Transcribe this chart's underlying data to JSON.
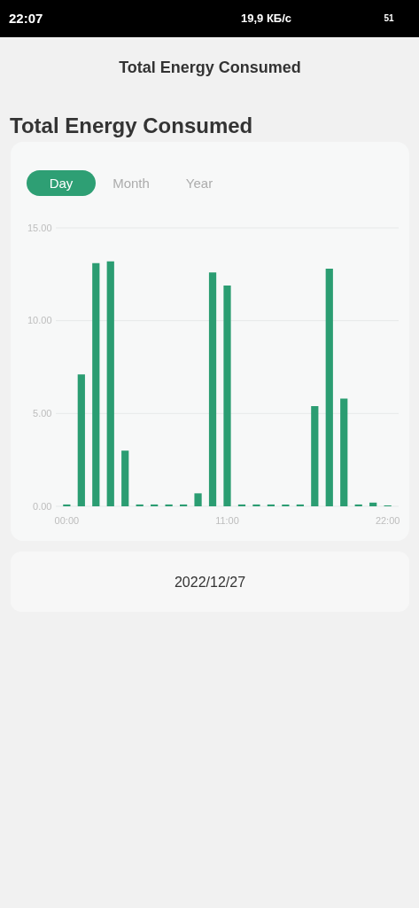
{
  "chart_data": {
    "type": "bar",
    "title": "Total Energy Consumed",
    "subtitle": "Total Energy Consumed",
    "categories": [
      "00:00",
      null,
      null,
      null,
      null,
      null,
      null,
      null,
      null,
      null,
      null,
      "11:00",
      null,
      null,
      null,
      null,
      null,
      null,
      null,
      null,
      null,
      null,
      "22:00"
    ],
    "values": [
      0.1,
      7.1,
      13.1,
      13.2,
      3.0,
      0.1,
      0.1,
      0.1,
      0.1,
      0.7,
      12.6,
      11.9,
      0.1,
      0.1,
      0.1,
      0.1,
      0.1,
      5.4,
      12.8,
      5.8,
      0.1,
      0.2,
      0.05
    ],
    "color": "#2b9d72",
    "ylim": [
      0,
      15
    ],
    "yticks": [
      {
        "value": 0,
        "label": "0.00"
      },
      {
        "value": 5,
        "label": "5.00"
      },
      {
        "value": 10,
        "label": "10.00"
      },
      {
        "value": 15,
        "label": "15.00"
      }
    ],
    "grid": "y",
    "annotations": [
      "22:07",
      "19,9 КБ/с",
      "51",
      "Day",
      "Month",
      "Year",
      "2022/12/27"
    ]
  }
}
